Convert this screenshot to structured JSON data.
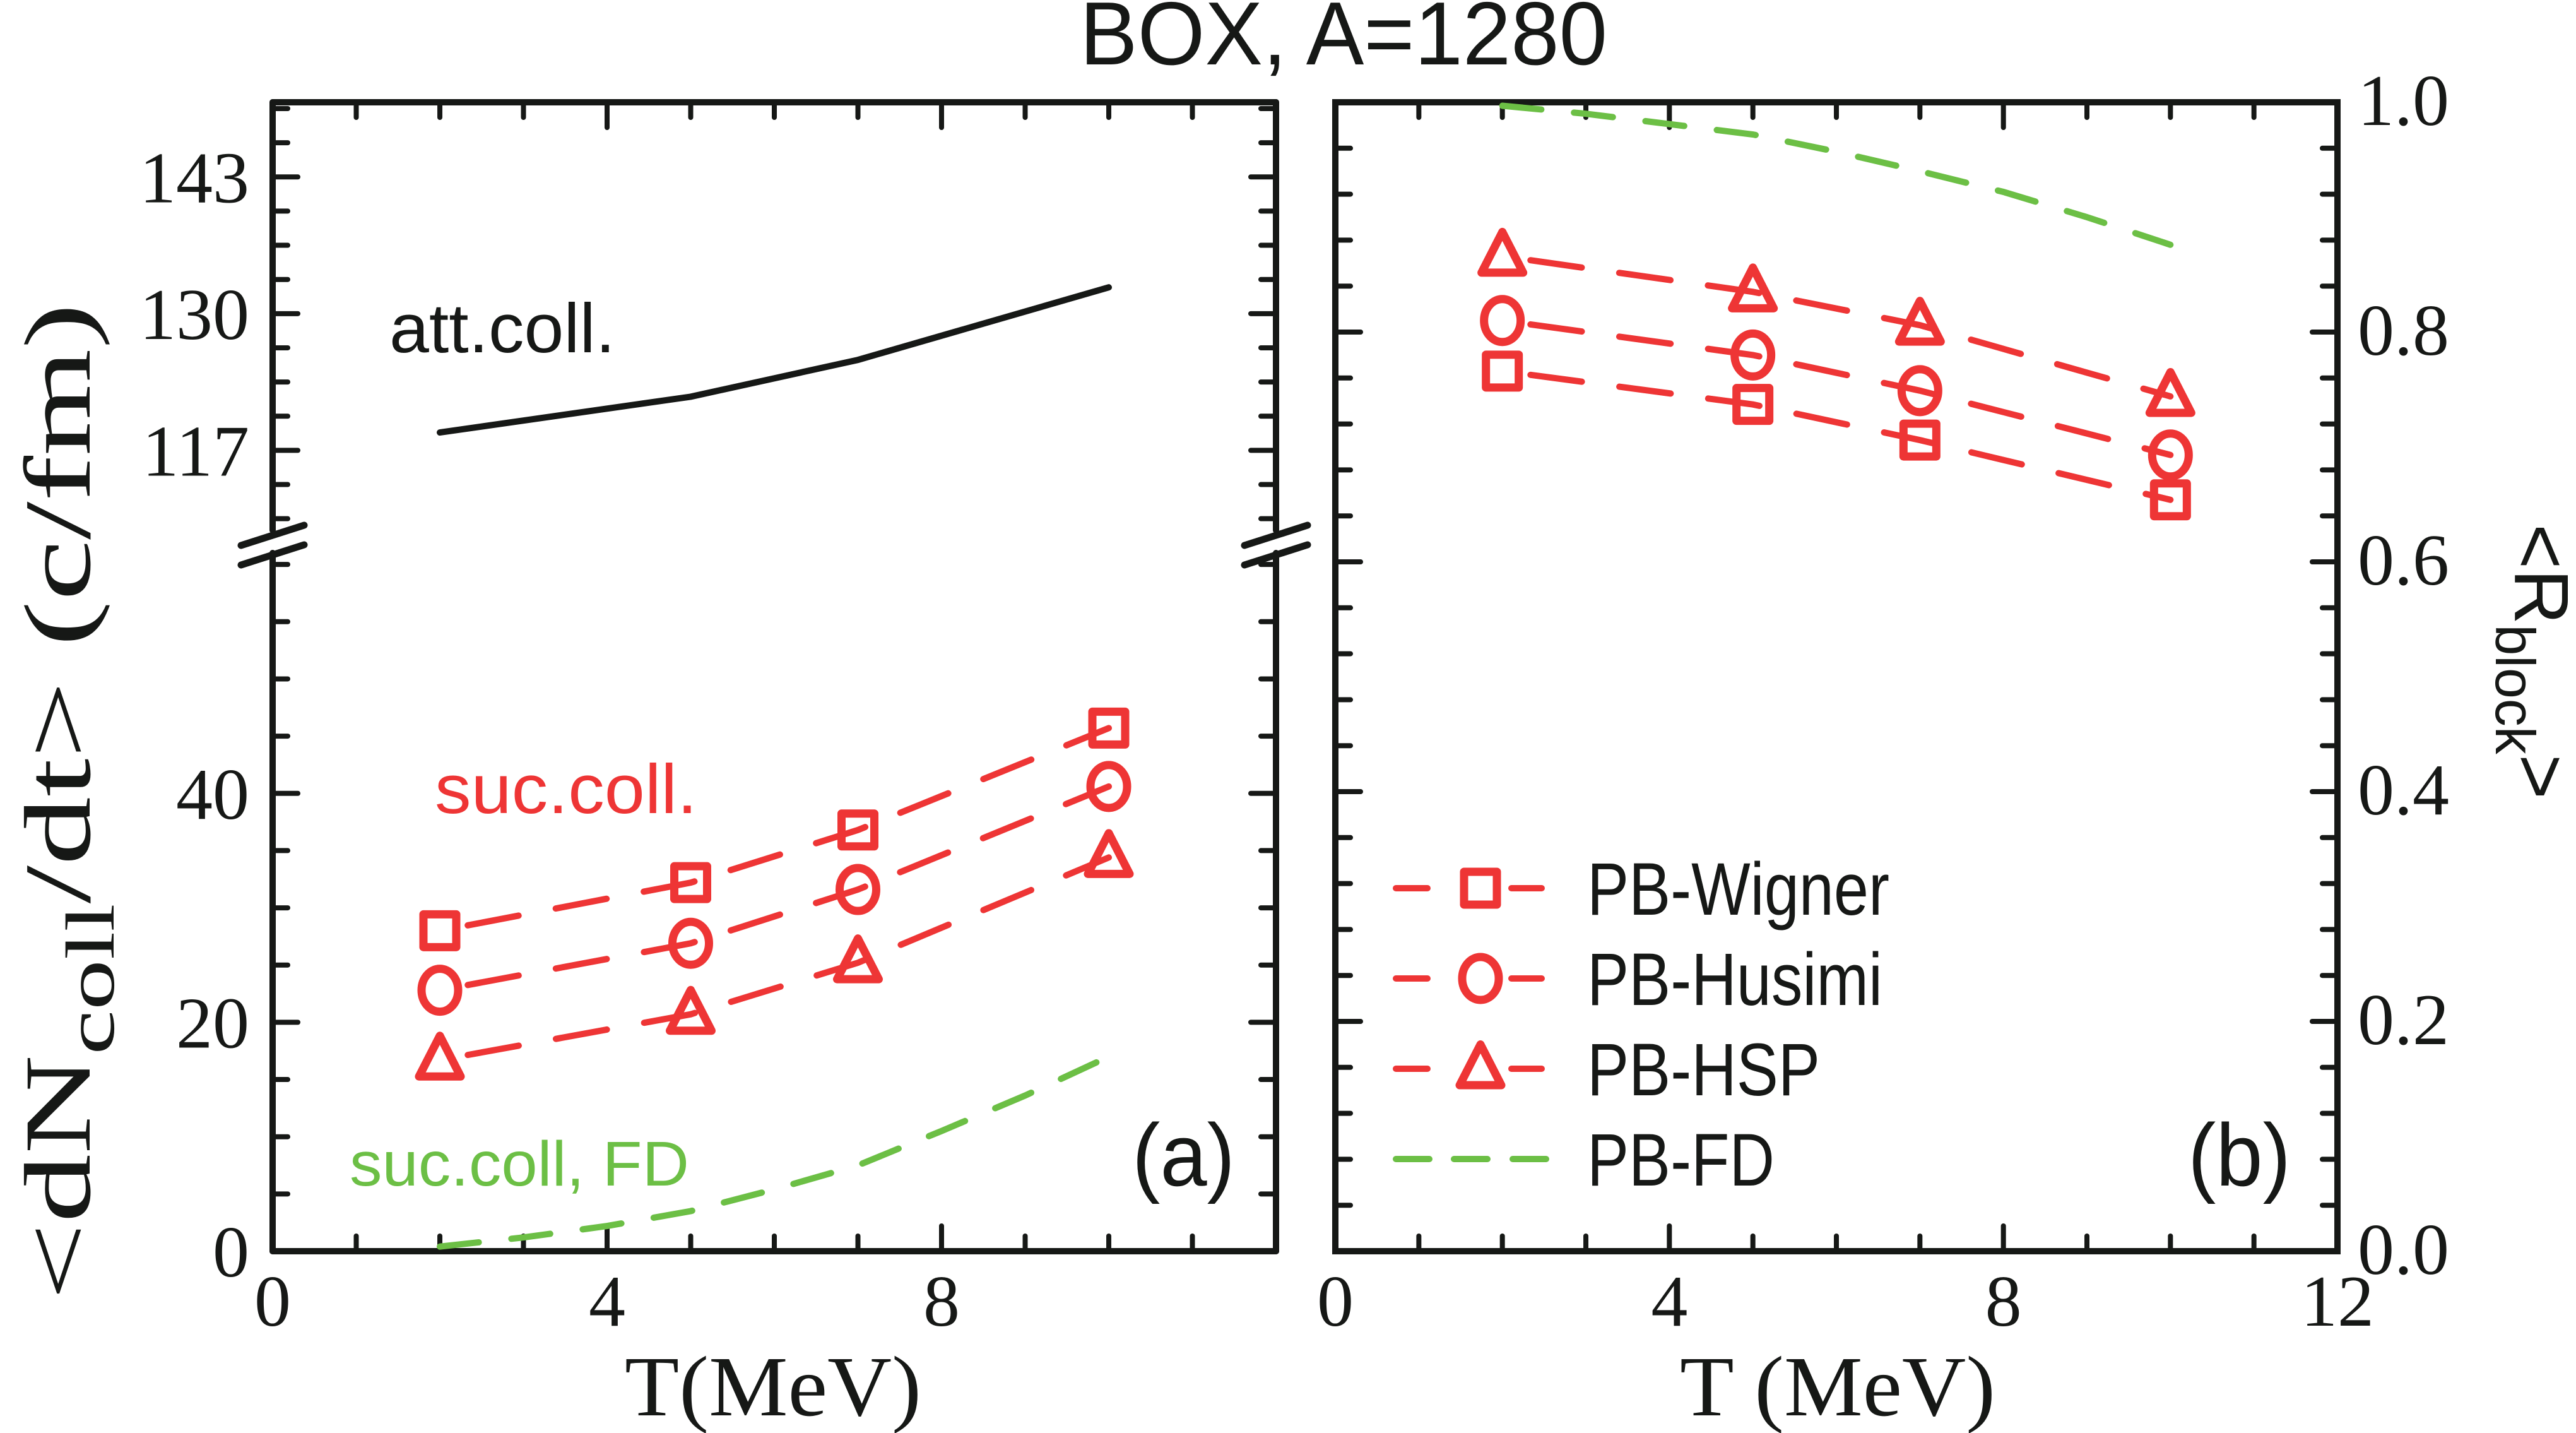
{
  "chart_data": [
    {
      "id": "a",
      "type": "line",
      "title": "BOX, A=1280",
      "panel_label": "(a)",
      "xlabel": "T(MeV)",
      "ylabel": {
        "main": "<dN",
        "sub": "coll",
        "rest": "/dt> (c/fm)"
      },
      "xlim": [
        0,
        12
      ],
      "x_ticks": [
        0,
        4,
        8
      ],
      "x_tick_labels": [
        "0",
        "4",
        "8"
      ],
      "x_minor_step": 1,
      "y_axis_break": true,
      "y_lower": {
        "ylim": [
          0,
          61
        ],
        "ticks": [
          0,
          20,
          40
        ],
        "tick_labels": [
          "0",
          "20",
          "40"
        ],
        "minor_step": 5
      },
      "y_upper": {
        "ylim": [
          109.4,
          150.1
        ],
        "ticks": [
          117,
          130,
          143
        ],
        "tick_labels": [
          "117",
          "130",
          "143"
        ],
        "minor_step": 3.25
      },
      "annotations": [
        {
          "text": "att.coll.",
          "color": "#161816"
        },
        {
          "text": "suc.coll.",
          "color": "#ee3535"
        },
        {
          "text": "suc.coll, FD",
          "color": "#6cbf45"
        }
      ],
      "series": [
        {
          "name": "att.coll.",
          "segment": "upper",
          "style": "solid",
          "marker": "none",
          "color": "#161816",
          "x": [
            2,
            5,
            7,
            10
          ],
          "y": [
            118.7,
            122.1,
            125.6,
            132.5
          ]
        },
        {
          "name": "PB-Wigner",
          "segment": "lower",
          "style": "dashed",
          "marker": "square",
          "color": "#ee3535",
          "x": [
            2,
            5,
            7,
            10
          ],
          "y": [
            28.0,
            32.2,
            36.8,
            45.7
          ]
        },
        {
          "name": "PB-Husimi",
          "segment": "lower",
          "style": "dashed",
          "marker": "circle",
          "color": "#ee3535",
          "x": [
            2,
            5,
            7,
            10
          ],
          "y": [
            22.8,
            26.9,
            31.6,
            40.6
          ]
        },
        {
          "name": "PB-HSP",
          "segment": "lower",
          "style": "dashed",
          "marker": "triangle",
          "color": "#ee3535",
          "x": [
            2,
            5,
            7,
            10
          ],
          "y": [
            16.7,
            20.7,
            25.2,
            34.4
          ]
        },
        {
          "name": "suc.coll, FD",
          "segment": "lower",
          "style": "dashed",
          "marker": "none",
          "color": "#6cbf45",
          "x": [
            2,
            3,
            4,
            5,
            6,
            7,
            8,
            9,
            10
          ],
          "y": [
            0.4,
            1.2,
            2.2,
            3.5,
            5.4,
            7.5,
            10.5,
            13.6,
            17.0
          ]
        }
      ]
    },
    {
      "id": "b",
      "type": "line",
      "panel_label": "(b)",
      "xlabel": "T (MeV)",
      "ylabel": {
        "main": "<R",
        "sub": "block",
        "rest": ">"
      },
      "xlim": [
        0,
        12
      ],
      "x_ticks": [
        0,
        4,
        8,
        12
      ],
      "x_tick_labels": [
        "0",
        "4",
        "8",
        "12"
      ],
      "x_minor_step": 1,
      "ylim": [
        0,
        1.0
      ],
      "y_ticks": [
        0.0,
        0.2,
        0.4,
        0.6,
        0.8,
        1.0
      ],
      "y_tick_labels": [
        "0.0",
        "0.2",
        "0.4",
        "0.6",
        "0.8",
        "1.0"
      ],
      "y_minor_step": 0.04,
      "y_axis_side": "right",
      "legend": {
        "placement": "bottom-left",
        "entries": [
          {
            "label": "PB-Wigner",
            "marker": "square",
            "style": "dashed",
            "color": "#ee3535"
          },
          {
            "label": "PB-Husimi",
            "marker": "circle",
            "style": "dashed",
            "color": "#ee3535"
          },
          {
            "label": "PB-HSP",
            "marker": "triangle",
            "style": "dashed",
            "color": "#ee3535"
          },
          {
            "label": "PB-FD",
            "marker": "none",
            "style": "dashed",
            "color": "#6cbf45"
          }
        ]
      },
      "series": [
        {
          "name": "PB-Wigner",
          "style": "dashed",
          "marker": "square",
          "color": "#ee3535",
          "x": [
            2,
            5,
            7,
            10
          ],
          "y": [
            0.766,
            0.737,
            0.706,
            0.654
          ]
        },
        {
          "name": "PB-Husimi",
          "style": "dashed",
          "marker": "circle",
          "color": "#ee3535",
          "x": [
            2,
            5,
            7,
            10
          ],
          "y": [
            0.81,
            0.78,
            0.749,
            0.693
          ]
        },
        {
          "name": "PB-HSP",
          "style": "dashed",
          "marker": "triangle",
          "color": "#ee3535",
          "x": [
            2,
            5,
            7,
            10
          ],
          "y": [
            0.866,
            0.835,
            0.806,
            0.744
          ]
        },
        {
          "name": "PB-FD",
          "style": "dashed",
          "marker": "none",
          "color": "#6cbf45",
          "x": [
            2,
            3,
            4,
            5,
            6,
            7,
            8,
            9,
            10
          ],
          "y": [
            0.997,
            0.99,
            0.981,
            0.972,
            0.957,
            0.94,
            0.922,
            0.9,
            0.876
          ]
        }
      ]
    }
  ]
}
